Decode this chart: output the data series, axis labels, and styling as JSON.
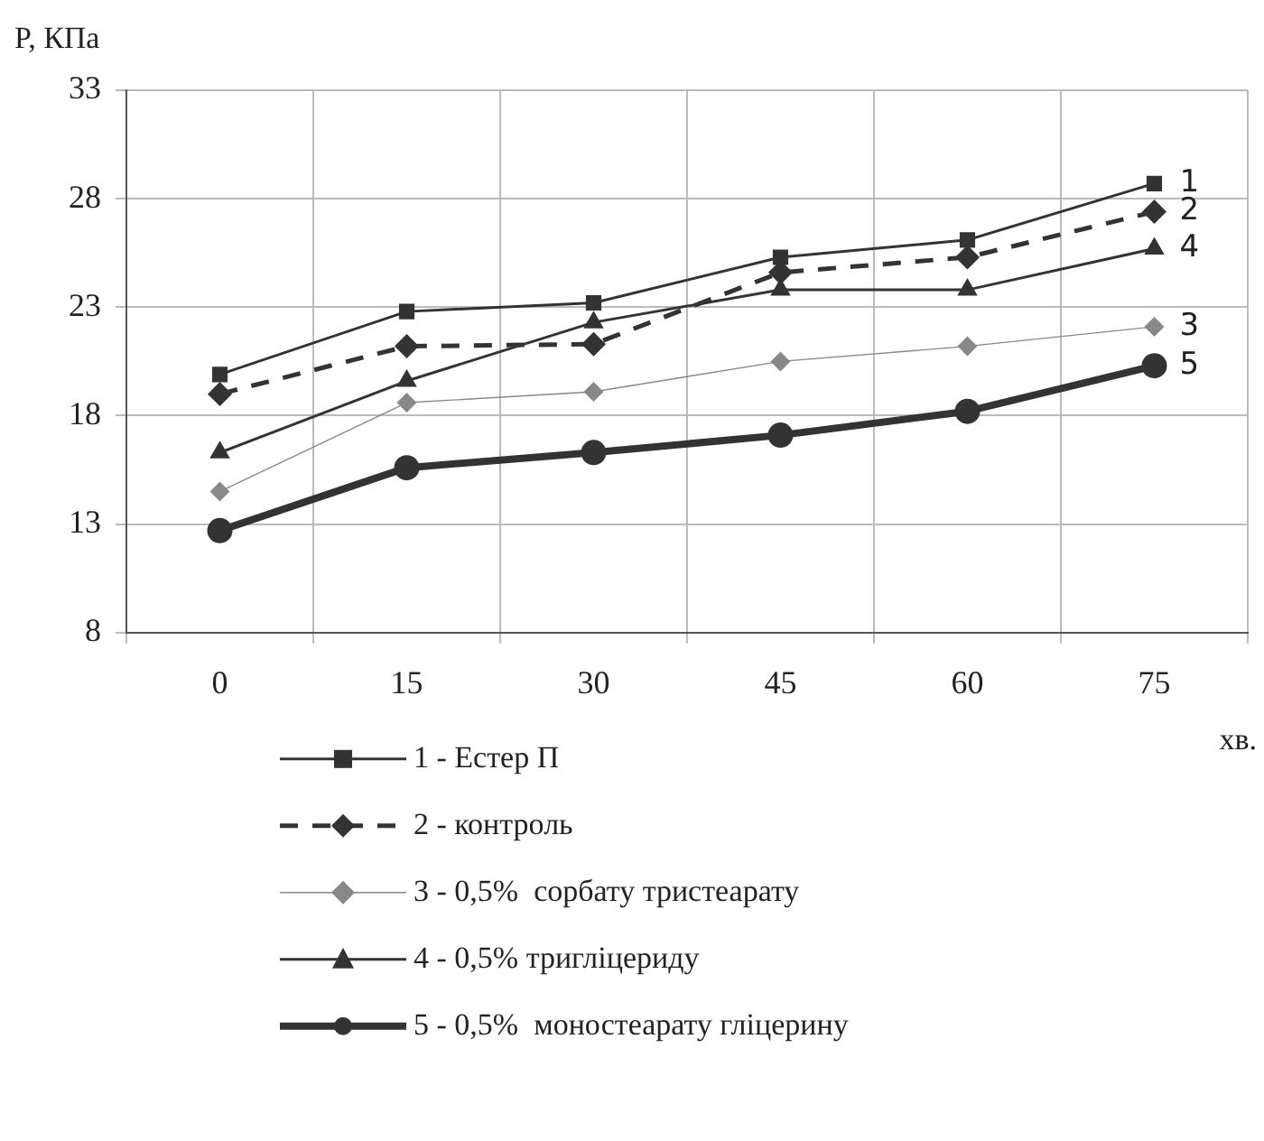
{
  "chart_data": {
    "type": "line",
    "ylabel": "P, КПа",
    "xlabel": "хв.",
    "categories": [
      "0",
      "15",
      "30",
      "45",
      "60",
      "75"
    ],
    "ylim": [
      8,
      33
    ],
    "yticks": [
      8,
      13,
      18,
      23,
      28,
      33
    ],
    "grid": true,
    "legend": "bottom",
    "series": [
      {
        "name": "1 - Естер П",
        "color": "#333333",
        "marker": "square",
        "line_style": "solid",
        "values": [
          19.9,
          22.8,
          23.2,
          25.3,
          26.1,
          28.7
        ]
      },
      {
        "name": "2 - контроль",
        "color": "#333333",
        "marker": "diamond",
        "line_style": "dashed",
        "values": [
          19.0,
          21.2,
          21.3,
          24.6,
          25.3,
          27.4
        ]
      },
      {
        "name": "3 - 0,5%  сорбату тристеарату",
        "color": "#888888",
        "marker": "diamond",
        "line_style": "solid",
        "values": [
          14.5,
          18.6,
          19.1,
          20.5,
          21.2,
          22.1
        ]
      },
      {
        "name": "4 - 0,5% тригліцериду",
        "color": "#333333",
        "marker": "triangle",
        "line_style": "solid",
        "values": [
          16.3,
          19.6,
          22.3,
          23.8,
          23.8,
          25.7
        ]
      },
      {
        "name": "5 - 0,5%  моностеарату гліцерину",
        "color": "#333333",
        "marker": "circle",
        "line_style": "solid",
        "values": [
          12.7,
          15.6,
          16.3,
          17.1,
          18.2,
          20.3
        ]
      }
    ],
    "annotations": [
      {
        "text": "1",
        "x": "75",
        "y": 28.7
      },
      {
        "text": "2",
        "x": "75",
        "y": 27.4
      },
      {
        "text": "3",
        "x": "75",
        "y": 22.1
      },
      {
        "text": "4",
        "x": "75",
        "y": 25.7
      },
      {
        "text": "5",
        "x": "75",
        "y": 20.3
      }
    ]
  }
}
